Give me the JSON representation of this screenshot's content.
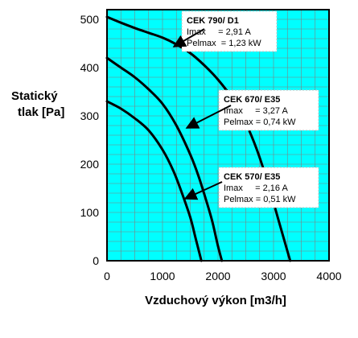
{
  "chart_data": {
    "type": "line",
    "title": "",
    "xlabel": "Vzduchový výkon [m3/h]",
    "ylabel": [
      "Statický",
      "tlak [Pa]"
    ],
    "xlim": [
      0,
      4000
    ],
    "ylim": [
      0,
      520
    ],
    "xticks": [
      "0",
      "1000",
      "2000",
      "3000",
      "4000"
    ],
    "yticks": [
      "0",
      "100",
      "200",
      "300",
      "400",
      "500"
    ],
    "grid": true,
    "background_color": "#00ffff",
    "grid_color": "#808080",
    "series": [
      {
        "name": "CEK 790/ D1",
        "x": [
          0,
          250,
          500,
          750,
          1000,
          1250,
          1500,
          1750,
          2000,
          2250,
          2500,
          2700,
          2900,
          3100,
          3300
        ],
        "y": [
          505,
          493,
          482,
          472,
          462,
          448,
          430,
          405,
          375,
          337,
          285,
          230,
          160,
          80,
          0
        ],
        "lines": [
          "Imax     = 2,91 A",
          "Pelmax  = 1,23 kW"
        ]
      },
      {
        "name": "CEK 670/ E35",
        "x": [
          0,
          250,
          500,
          750,
          1000,
          1250,
          1500,
          1650,
          1800,
          1900,
          2000,
          2070
        ],
        "y": [
          420,
          400,
          380,
          355,
          325,
          280,
          220,
          175,
          120,
          80,
          30,
          0
        ],
        "lines": [
          "Imax     = 3,27 A",
          "Pelmax = 0,74 kW"
        ]
      },
      {
        "name": "CEK 570/ E35",
        "x": [
          0,
          250,
          500,
          750,
          1000,
          1200,
          1350,
          1500,
          1600,
          1700
        ],
        "y": [
          330,
          315,
          295,
          270,
          230,
          185,
          140,
          90,
          45,
          0
        ],
        "lines": [
          "Imax     = 2,16 A",
          "Pelmax = 0,51 kW"
        ]
      }
    ]
  }
}
